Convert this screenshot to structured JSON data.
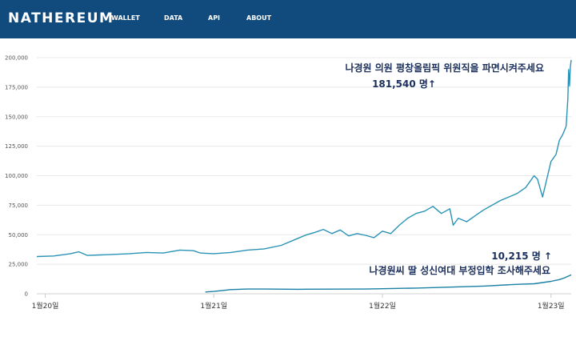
{
  "app": {
    "brand": "NATHEREUM",
    "nav": [
      "WALLET",
      "DATA",
      "API",
      "ABOUT"
    ],
    "colors": {
      "header": "#114b7e",
      "series1": "#2a93b5",
      "series2": "#1a7fa5",
      "grid": "#e8e8e8",
      "annotation": "#1b2f5c"
    }
  },
  "chart_data": {
    "type": "line",
    "title": "",
    "xlabel": "",
    "ylabel": "",
    "ylim": [
      0,
      200000
    ],
    "yticks": [
      "0",
      "25,000",
      "50,000",
      "75,000",
      "100,000",
      "125,000",
      "150,000",
      "175,000",
      "200,000"
    ],
    "ytick_values": [
      0,
      25000,
      50000,
      75000,
      100000,
      125000,
      150000,
      175000,
      200000
    ],
    "xticks": [
      "1월20일",
      "1월21일",
      "1월22일",
      "1월23일"
    ],
    "xtick_values": [
      0,
      1,
      2,
      3
    ],
    "xlim": [
      -0.05,
      3.12
    ],
    "grid": true,
    "annotations": [
      {
        "line1": "나경원 의원 평창올림픽 위원직을 파면시켜주세요",
        "line2": "181,540 명↑"
      },
      {
        "line1": "10,215 명 ↑",
        "line2": "나경원씨 딸 성신여대 부정입학 조사해주세요"
      }
    ],
    "series": [
      {
        "points": [
          [
            -0.05,
            31500
          ],
          [
            0.05,
            32000
          ],
          [
            0.15,
            34000
          ],
          [
            0.2,
            35500
          ],
          [
            0.25,
            32500
          ],
          [
            0.35,
            33000
          ],
          [
            0.5,
            34000
          ],
          [
            0.6,
            35000
          ],
          [
            0.7,
            34500
          ],
          [
            0.8,
            37000
          ],
          [
            0.88,
            36500
          ],
          [
            0.92,
            34500
          ],
          [
            1.0,
            34000
          ],
          [
            1.1,
            35000
          ],
          [
            1.2,
            37000
          ],
          [
            1.3,
            38000
          ],
          [
            1.4,
            41000
          ],
          [
            1.5,
            47000
          ],
          [
            1.55,
            50000
          ],
          [
            1.6,
            52000
          ],
          [
            1.65,
            54500
          ],
          [
            1.7,
            51000
          ],
          [
            1.75,
            54000
          ],
          [
            1.8,
            49000
          ],
          [
            1.85,
            51000
          ],
          [
            1.9,
            49500
          ],
          [
            1.95,
            47500
          ],
          [
            2.0,
            53000
          ],
          [
            2.05,
            51000
          ],
          [
            2.1,
            58000
          ],
          [
            2.15,
            64000
          ],
          [
            2.2,
            68000
          ],
          [
            2.25,
            70000
          ],
          [
            2.3,
            74000
          ],
          [
            2.35,
            68000
          ],
          [
            2.4,
            72000
          ],
          [
            2.42,
            58000
          ],
          [
            2.45,
            64000
          ],
          [
            2.5,
            61000
          ],
          [
            2.55,
            66000
          ],
          [
            2.6,
            71000
          ],
          [
            2.65,
            75000
          ],
          [
            2.7,
            79000
          ],
          [
            2.75,
            82000
          ],
          [
            2.8,
            85000
          ],
          [
            2.85,
            90000
          ],
          [
            2.9,
            100000
          ],
          [
            2.92,
            97000
          ],
          [
            2.95,
            82000
          ],
          [
            3.0,
            112000
          ],
          [
            3.03,
            118000
          ],
          [
            3.05,
            130000
          ],
          [
            3.07,
            135000
          ],
          [
            3.09,
            142000
          ],
          [
            3.1,
            165000
          ],
          [
            3.105,
            190000
          ],
          [
            3.11,
            176000
          ],
          [
            3.115,
            192000
          ],
          [
            3.12,
            198000
          ]
        ]
      },
      {
        "points": [
          [
            0.95,
            1500
          ],
          [
            1.0,
            2000
          ],
          [
            1.1,
            3500
          ],
          [
            1.2,
            4000
          ],
          [
            1.3,
            4000
          ],
          [
            1.5,
            3800
          ],
          [
            1.7,
            3900
          ],
          [
            1.9,
            4000
          ],
          [
            2.0,
            4300
          ],
          [
            2.2,
            4800
          ],
          [
            2.4,
            5600
          ],
          [
            2.6,
            6500
          ],
          [
            2.8,
            8000
          ],
          [
            2.9,
            8500
          ],
          [
            3.0,
            10500
          ],
          [
            3.05,
            12000
          ],
          [
            3.08,
            13500
          ],
          [
            3.12,
            16000
          ]
        ]
      }
    ]
  }
}
